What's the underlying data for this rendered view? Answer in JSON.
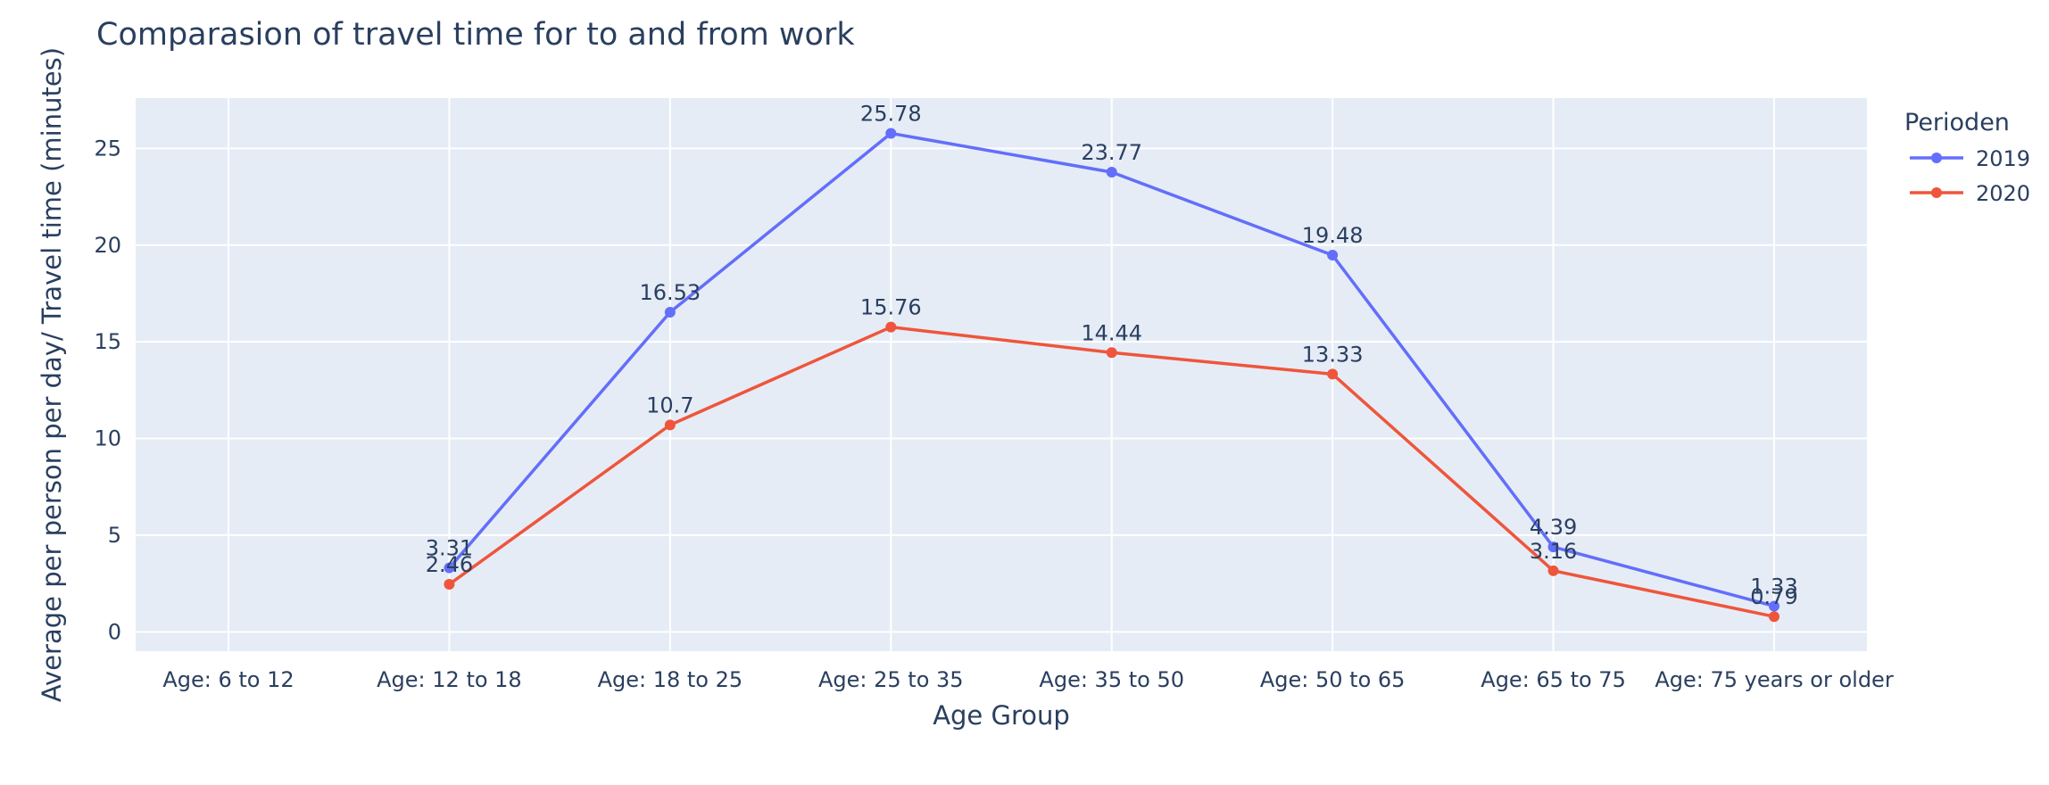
{
  "chart_data": {
    "type": "line",
    "title": "Comparasion of travel time for to and from work",
    "xlabel": "Age Group",
    "ylabel": "Average per person per day/ Travel time (minutes)",
    "categories": [
      "Age: 6 to 12",
      "Age: 12 to 18",
      "Age: 18 to 25",
      "Age: 25 to 35",
      "Age: 35 to 50",
      "Age: 50 to 65",
      "Age: 65 to 75",
      "Age: 75 years or older"
    ],
    "ylim": [
      -1,
      27.6
    ],
    "yticks": [
      0,
      5,
      10,
      15,
      20,
      25
    ],
    "grid": true,
    "legend": {
      "title": "Perioden",
      "placement": "top-right"
    },
    "series": [
      {
        "name": "2019",
        "color": "#636efa",
        "values": [
          null,
          3.31,
          16.53,
          25.78,
          23.77,
          19.48,
          4.39,
          1.33
        ],
        "labels": [
          "",
          "3.31",
          "16.53",
          "25.78",
          "23.77",
          "19.48",
          "4.39",
          "1.33"
        ]
      },
      {
        "name": "2020",
        "color": "#ef553b",
        "values": [
          null,
          2.46,
          10.7,
          15.76,
          14.44,
          13.33,
          3.16,
          0.79
        ],
        "labels": [
          "",
          "2.46",
          "10.7",
          "15.76",
          "14.44",
          "13.33",
          "3.16",
          "0.79"
        ]
      }
    ],
    "plot_bg": "#e5ecf6"
  }
}
